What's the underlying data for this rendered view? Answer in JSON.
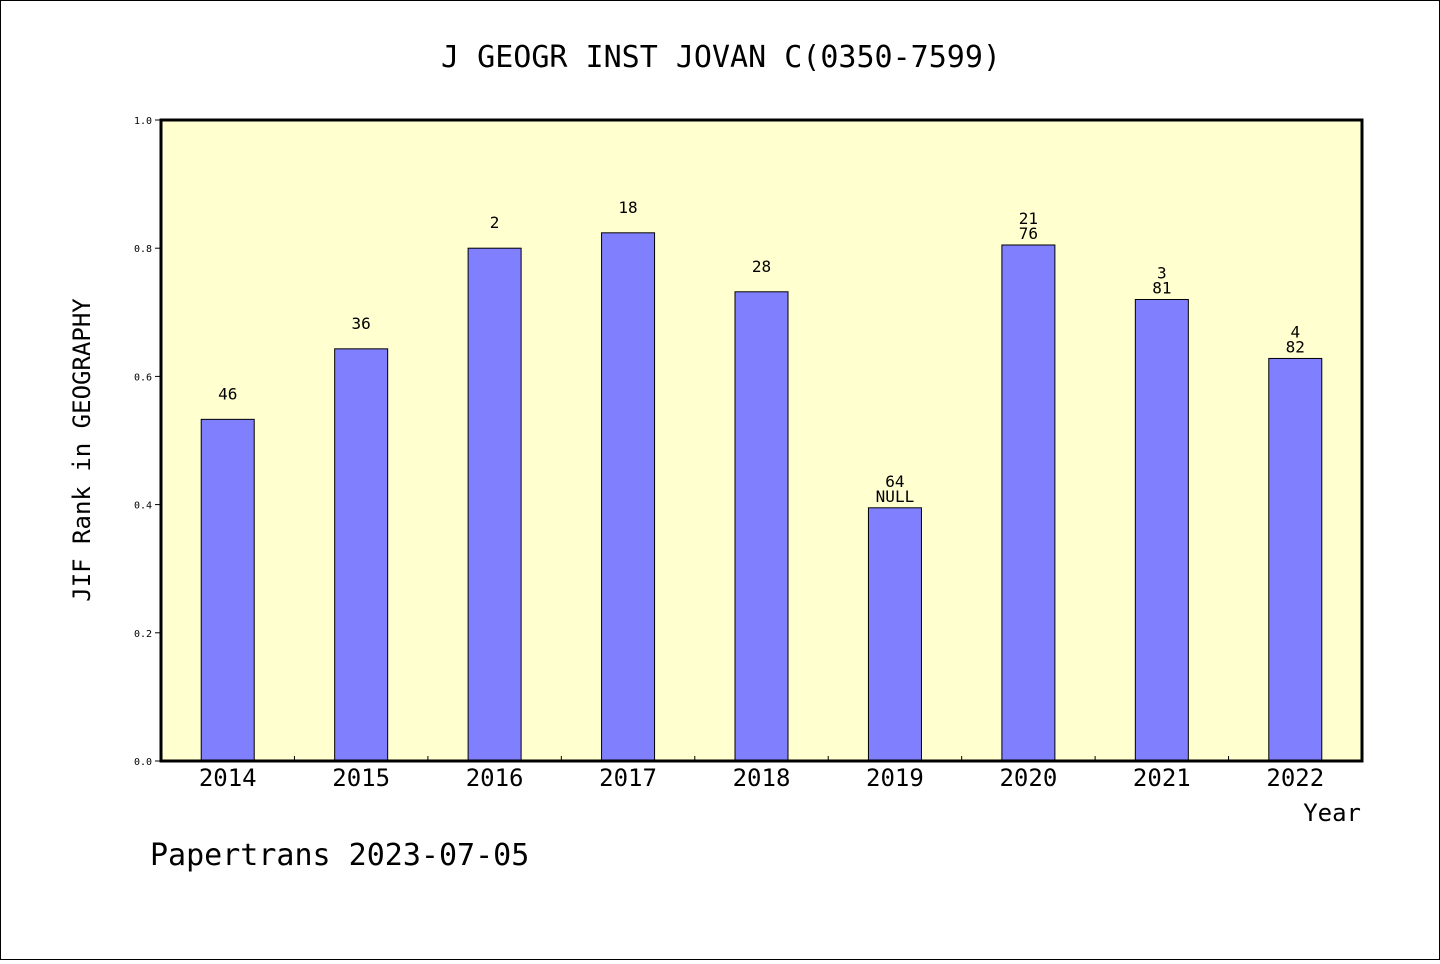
{
  "chart_data": {
    "type": "bar",
    "title": "J GEOGR INST JOVAN C(0350-7599)",
    "ylabel": "JIF Rank in GEOGRAPHY",
    "xlabel": "Year",
    "ylim": [
      0,
      1.0
    ],
    "yticks": [
      "0.0",
      "0.2",
      "0.4",
      "0.6",
      "0.8",
      "1.0"
    ],
    "ytick_values": [
      0,
      0.2,
      0.4,
      0.6,
      0.8,
      1.0
    ],
    "categories": [
      "2014",
      "2015",
      "2016",
      "2017",
      "2018",
      "2019",
      "2020",
      "2021",
      "2022"
    ],
    "values": [
      0.533,
      0.643,
      0.8,
      0.824,
      0.732,
      0.395,
      0.805,
      0.72,
      0.628
    ],
    "labels_top": [
      "",
      "",
      "",
      "",
      "",
      "64",
      "21",
      "3",
      "4"
    ],
    "labels_bottom": [
      "46",
      "36",
      "2",
      "18",
      "28",
      "NULL",
      "76",
      "81",
      "82"
    ],
    "bar_color": "#8080ff",
    "plot_background": "#ffffd0",
    "grid": false
  },
  "footer": "Papertrans 2023-07-05"
}
